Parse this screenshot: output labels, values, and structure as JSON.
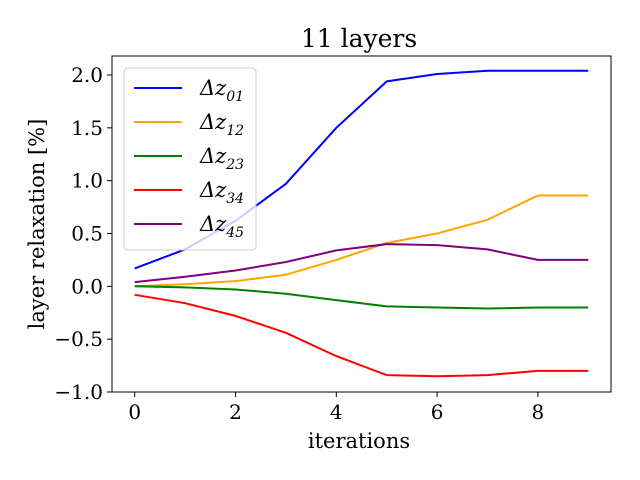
{
  "chart_data": {
    "type": "line",
    "title": "11 layers",
    "xlabel": "iterations",
    "ylabel": "layer relaxation [%]",
    "xlim": [
      -0.45,
      9.45
    ],
    "ylim": [
      -1.0,
      2.18
    ],
    "xticks": [
      0,
      2,
      4,
      6,
      8
    ],
    "xtick_labels": [
      "0",
      "2",
      "4",
      "6",
      "8"
    ],
    "yticks": [
      -1.0,
      -0.5,
      0.0,
      0.5,
      1.0,
      1.5,
      2.0
    ],
    "ytick_labels": [
      "−1.0",
      "−0.5",
      "0.0",
      "0.5",
      "1.0",
      "1.5",
      "2.0"
    ],
    "grid": false,
    "legend_position": "upper-left",
    "x": [
      0,
      1,
      2,
      3,
      4,
      5,
      6,
      7,
      8,
      9
    ],
    "series": [
      {
        "name": "Δz01",
        "base": "Δz",
        "sub": "01",
        "color": "#0000ff",
        "values": [
          0.17,
          0.35,
          0.62,
          0.97,
          1.5,
          1.94,
          2.01,
          2.04,
          2.04,
          2.04
        ]
      },
      {
        "name": "Δz12",
        "base": "Δz",
        "sub": "12",
        "color": "#ffa500",
        "values": [
          0.0,
          0.02,
          0.05,
          0.11,
          0.25,
          0.41,
          0.5,
          0.63,
          0.86,
          0.86
        ]
      },
      {
        "name": "Δz23",
        "base": "Δz",
        "sub": "23",
        "color": "#008000",
        "values": [
          0.0,
          -0.01,
          -0.03,
          -0.07,
          -0.13,
          -0.19,
          -0.2,
          -0.21,
          -0.2,
          -0.2
        ]
      },
      {
        "name": "Δz34",
        "base": "Δz",
        "sub": "34",
        "color": "#ff0000",
        "values": [
          -0.08,
          -0.16,
          -0.28,
          -0.44,
          -0.66,
          -0.84,
          -0.85,
          -0.84,
          -0.8,
          -0.8
        ]
      },
      {
        "name": "Δz45",
        "base": "Δz",
        "sub": "45",
        "color": "#800080",
        "values": [
          0.04,
          0.09,
          0.15,
          0.23,
          0.34,
          0.4,
          0.39,
          0.35,
          0.25,
          0.25
        ]
      }
    ]
  }
}
